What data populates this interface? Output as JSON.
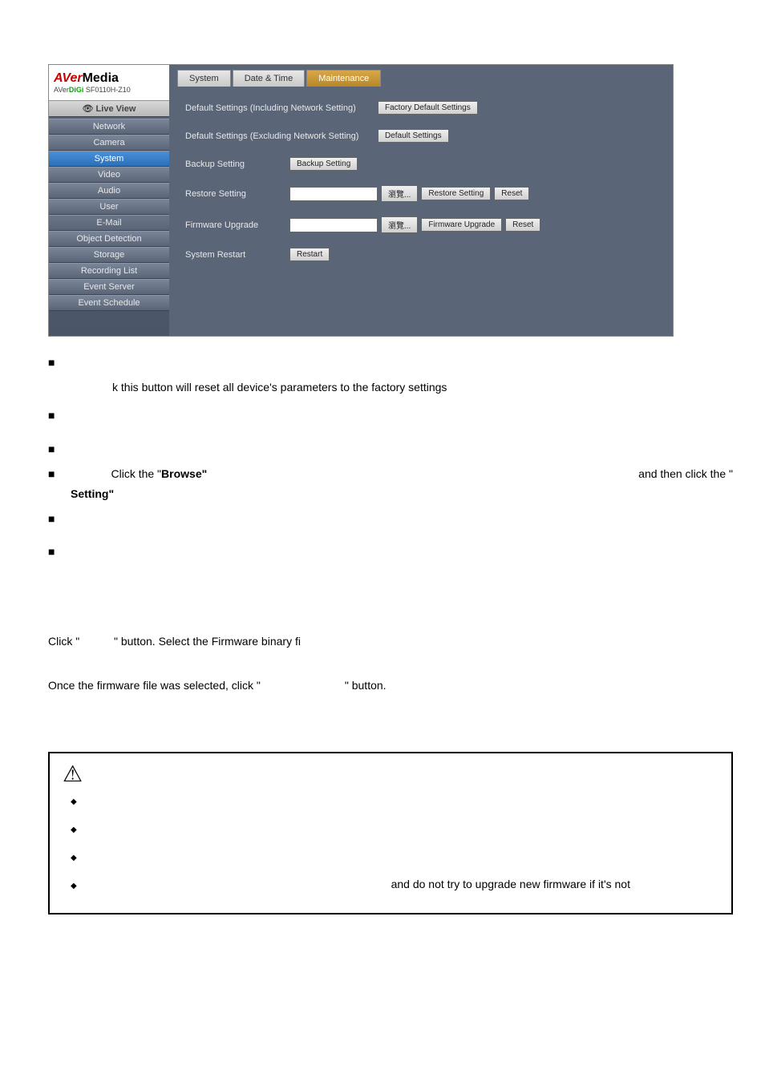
{
  "logo": {
    "brand_aver": "AVer",
    "brand_media": "Media",
    "sub_prefix": "AVer",
    "sub_digi": "DiGi",
    "sub_model": " SF0110H-Z10"
  },
  "sidebar": {
    "live": "Live View",
    "items": [
      "Network",
      "Camera",
      "System",
      "Video",
      "Audio",
      "User",
      "E-Mail",
      "Object Detection",
      "Storage",
      "Recording List",
      "Event Server",
      "Event Schedule"
    ],
    "active_index": 2
  },
  "tabs": {
    "items": [
      "System",
      "Date & Time",
      "Maintenance"
    ],
    "active_index": 2
  },
  "settings": {
    "row1": {
      "label": "Default Settings (Including Network Setting)",
      "btn": "Factory Default Settings"
    },
    "row2": {
      "label": "Default Settings (Excluding Network Setting)",
      "btn": "Default Settings"
    },
    "row3": {
      "label": "Backup Setting",
      "btn": "Backup Setting"
    },
    "row4": {
      "label": "Restore Setting",
      "browse": "瀏覽...",
      "btn": "Restore Setting",
      "reset": "Reset"
    },
    "row5": {
      "label": "Firmware Upgrade",
      "browse": "瀏覽...",
      "btn": "Firmware Upgrade",
      "reset": "Reset"
    },
    "row6": {
      "label": "System Restart",
      "btn": "Restart"
    }
  },
  "doc": {
    "line1": "k this button will reset all device's parameters to the factory settings",
    "line2a": "Click the \"",
    "line2b": "Browse\"",
    "line2c": "and then click the \"",
    "line3": "Setting\"",
    "line4a": "Click \"",
    "line4b": "\" button. Select the Firmware binary fi",
    "line5a": "Once the firmware file was selected, click \"",
    "line5b": "\" button.",
    "warn": "and do not try to upgrade new firmware if it's not"
  },
  "colors": {
    "panel_bg": "#5a6578",
    "tab_active": "#d8a848",
    "nav_active": "#4a90d9"
  }
}
